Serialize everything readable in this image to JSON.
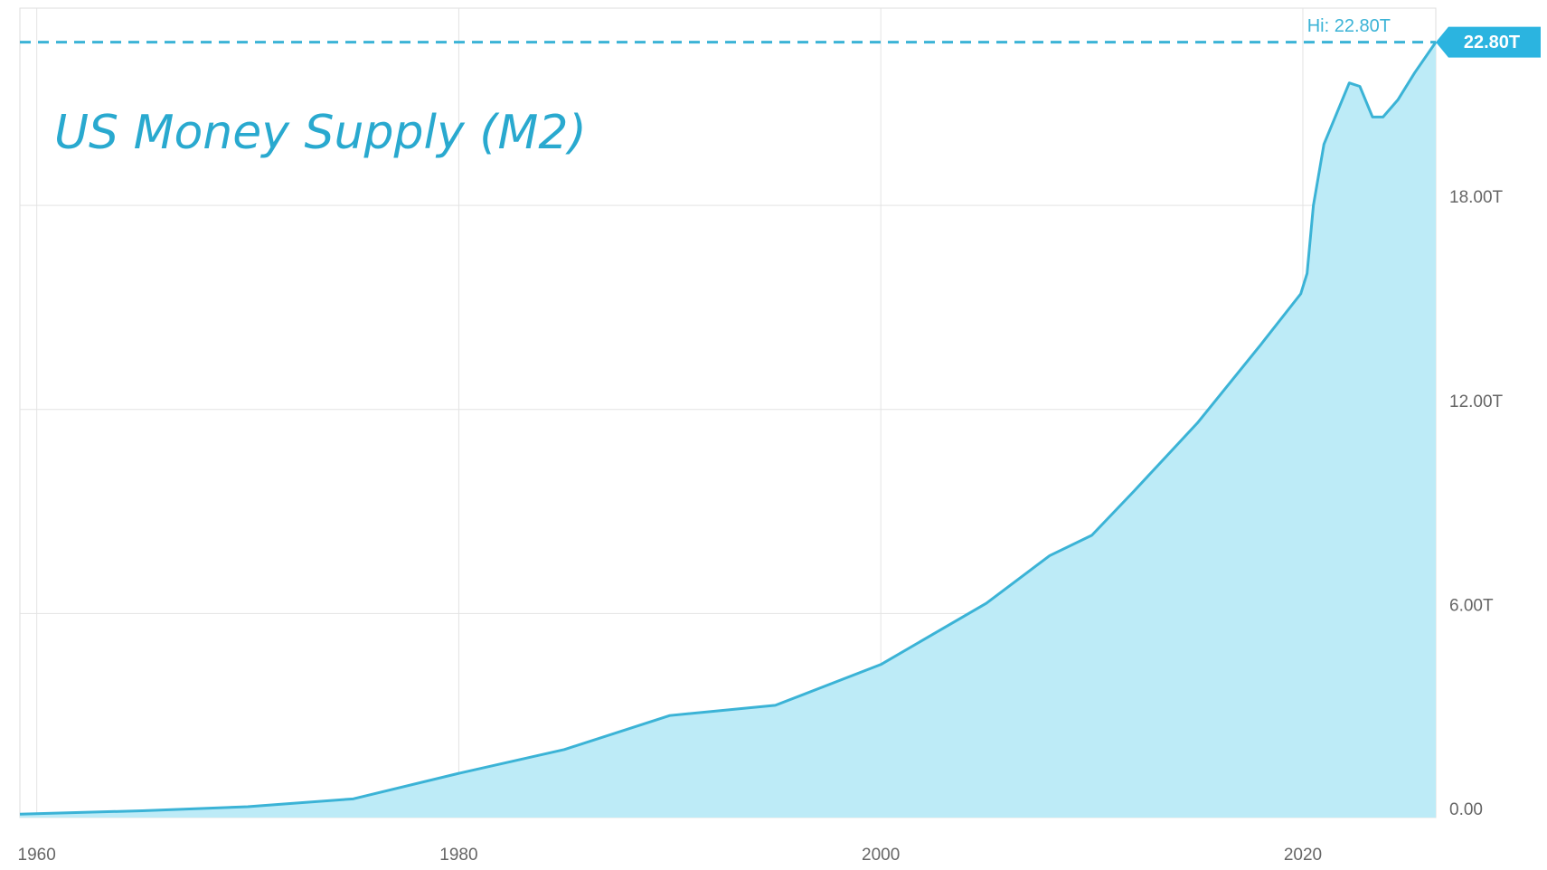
{
  "chart_data": {
    "type": "area",
    "title": "US Money Supply (M2)",
    "x": [
      1959.2,
      1965,
      1970,
      1975,
      1980,
      1985,
      1990,
      1995,
      2000,
      2005,
      2008,
      2010,
      2012,
      2015,
      2018,
      2019.9,
      2020.2,
      2020.5,
      2021,
      2022.2,
      2022.7,
      2023.3,
      2023.8,
      2024.5,
      2025.3,
      2026.3
    ],
    "series": [
      {
        "name": "M2",
        "color": "#3bb3d6",
        "values": [
          0.1,
          0.2,
          0.32,
          0.55,
          1.3,
          2.0,
          3.0,
          3.3,
          4.5,
          6.3,
          7.7,
          8.3,
          9.6,
          11.6,
          13.9,
          15.4,
          16.0,
          18.0,
          19.8,
          21.6,
          21.5,
          20.6,
          20.6,
          21.1,
          21.9,
          22.8
        ]
      }
    ],
    "fill": "#bdebf7",
    "xlim": [
      1959.2,
      2026.3
    ],
    "xticks": [
      1960,
      1980,
      2000,
      2020
    ],
    "ylim": [
      0,
      23.8
    ],
    "yticks": [
      {
        "value": 0,
        "label": "0.00"
      },
      {
        "value": 6,
        "label": "6.00T"
      },
      {
        "value": 12,
        "label": "12.00T"
      },
      {
        "value": 18,
        "label": "18.00T"
      }
    ],
    "grid": true,
    "hi_value": 22.8,
    "hi_label": "Hi: 22.80T",
    "last_label": "22.80T"
  }
}
